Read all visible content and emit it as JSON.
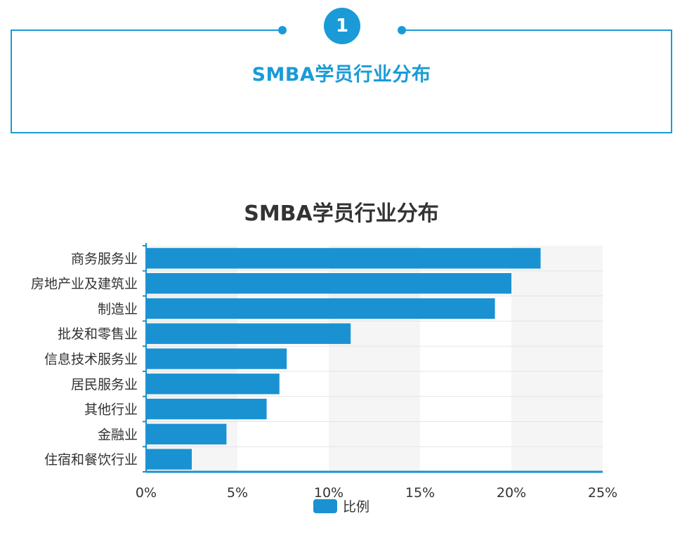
{
  "header": {
    "number": "1",
    "title": "SMBA学员行业分布"
  },
  "colors": {
    "accent": "#1a9bd7",
    "bar": "#1a92d2",
    "band": "#f5f5f5",
    "text": "#333333"
  },
  "chart_data": {
    "type": "bar",
    "orientation": "horizontal",
    "title": "SMBA学员行业分布",
    "categories": [
      "商务服务业",
      "房地产业及建筑业",
      "制造业",
      "批发和零售业",
      "信息技术服务业",
      "居民服务业",
      "其他行业",
      "金融业",
      "住宿和餐饮行业"
    ],
    "series": [
      {
        "name": "比例",
        "values": [
          21.6,
          20.0,
          19.1,
          11.2,
          7.7,
          7.3,
          6.6,
          4.4,
          2.5
        ]
      }
    ],
    "xlim": [
      0,
      25
    ],
    "xticks": [
      "0%",
      "5%",
      "10%",
      "15%",
      "20%",
      "25%"
    ],
    "grid": "alternating vertical bands",
    "legend": "bottom-center"
  }
}
